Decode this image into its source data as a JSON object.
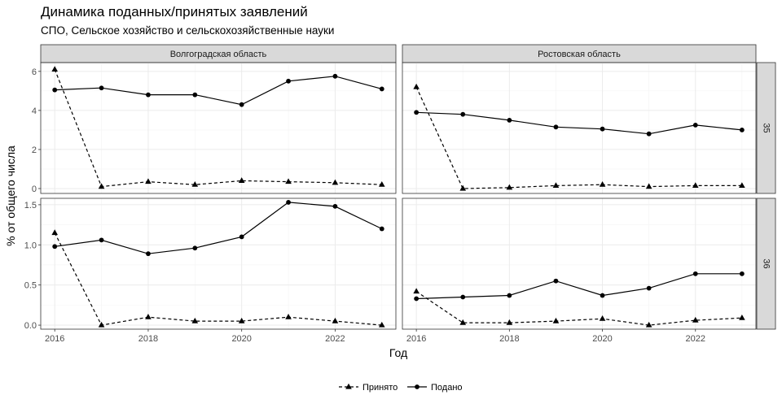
{
  "title": "Динамика поданных/принятых заявлений",
  "subtitle": "СПО, Сельское хозяйство и сельскохозяйственные науки",
  "chart_data": {
    "type": "line",
    "facet_columns": [
      "Волгоградская область",
      "Ростовская область"
    ],
    "facet_rows": [
      "35",
      "36"
    ],
    "xlabel": "Год",
    "ylabel": "% от общего числа",
    "x_ticks": [
      2016,
      2018,
      2020,
      2022
    ],
    "xlim": [
      2015.7,
      2023.3
    ],
    "rows": [
      {
        "label": "35",
        "ylim": [
          -0.25,
          6.45
        ],
        "y_ticks": [
          0,
          2,
          4,
          6
        ]
      },
      {
        "label": "36",
        "ylim": [
          -0.05,
          1.58
        ],
        "y_ticks": [
          0.0,
          0.5,
          1.0,
          1.5
        ]
      }
    ],
    "series_names": [
      "Принято",
      "Подано"
    ],
    "legend_position": "bottom",
    "panels": [
      {
        "row": "35",
        "col": "Волгоградская область",
        "series": [
          {
            "name": "Принято",
            "x": [
              2016,
              2017,
              2018,
              2019,
              2020,
              2021,
              2022,
              2023
            ],
            "y": [
              6.1,
              0.1,
              0.35,
              0.2,
              0.4,
              0.35,
              0.3,
              0.2
            ]
          },
          {
            "name": "Подано",
            "x": [
              2016,
              2017,
              2018,
              2019,
              2020,
              2021,
              2022,
              2023
            ],
            "y": [
              5.05,
              5.15,
              4.8,
              4.8,
              4.3,
              5.5,
              5.75,
              5.1
            ]
          }
        ]
      },
      {
        "row": "35",
        "col": "Ростовская область",
        "series": [
          {
            "name": "Принято",
            "x": [
              2016,
              2017,
              2018,
              2019,
              2020,
              2021,
              2022,
              2023
            ],
            "y": [
              5.2,
              0.0,
              0.05,
              0.15,
              0.2,
              0.1,
              0.15,
              0.15
            ]
          },
          {
            "name": "Подано",
            "x": [
              2016,
              2017,
              2018,
              2019,
              2020,
              2021,
              2022,
              2023
            ],
            "y": [
              3.9,
              3.8,
              3.5,
              3.15,
              3.05,
              2.8,
              3.25,
              3.0
            ]
          }
        ]
      },
      {
        "row": "36",
        "col": "Волгоградская область",
        "series": [
          {
            "name": "Принято",
            "x": [
              2016,
              2017,
              2018,
              2019,
              2020,
              2021,
              2022,
              2023
            ],
            "y": [
              1.15,
              0.0,
              0.1,
              0.05,
              0.05,
              0.1,
              0.05,
              0.0
            ]
          },
          {
            "name": "Подано",
            "x": [
              2016,
              2017,
              2018,
              2019,
              2020,
              2021,
              2022,
              2023
            ],
            "y": [
              0.98,
              1.06,
              0.89,
              0.96,
              1.1,
              1.53,
              1.48,
              1.2
            ]
          }
        ]
      },
      {
        "row": "36",
        "col": "Ростовская область",
        "series": [
          {
            "name": "Принято",
            "x": [
              2016,
              2017,
              2018,
              2019,
              2020,
              2021,
              2022,
              2023
            ],
            "y": [
              0.42,
              0.03,
              0.03,
              0.05,
              0.08,
              0.0,
              0.06,
              0.09
            ]
          },
          {
            "name": "Подано",
            "x": [
              2016,
              2017,
              2018,
              2019,
              2020,
              2021,
              2022,
              2023
            ],
            "y": [
              0.33,
              0.35,
              0.37,
              0.55,
              0.37,
              0.46,
              0.64,
              0.64
            ]
          }
        ]
      }
    ]
  }
}
